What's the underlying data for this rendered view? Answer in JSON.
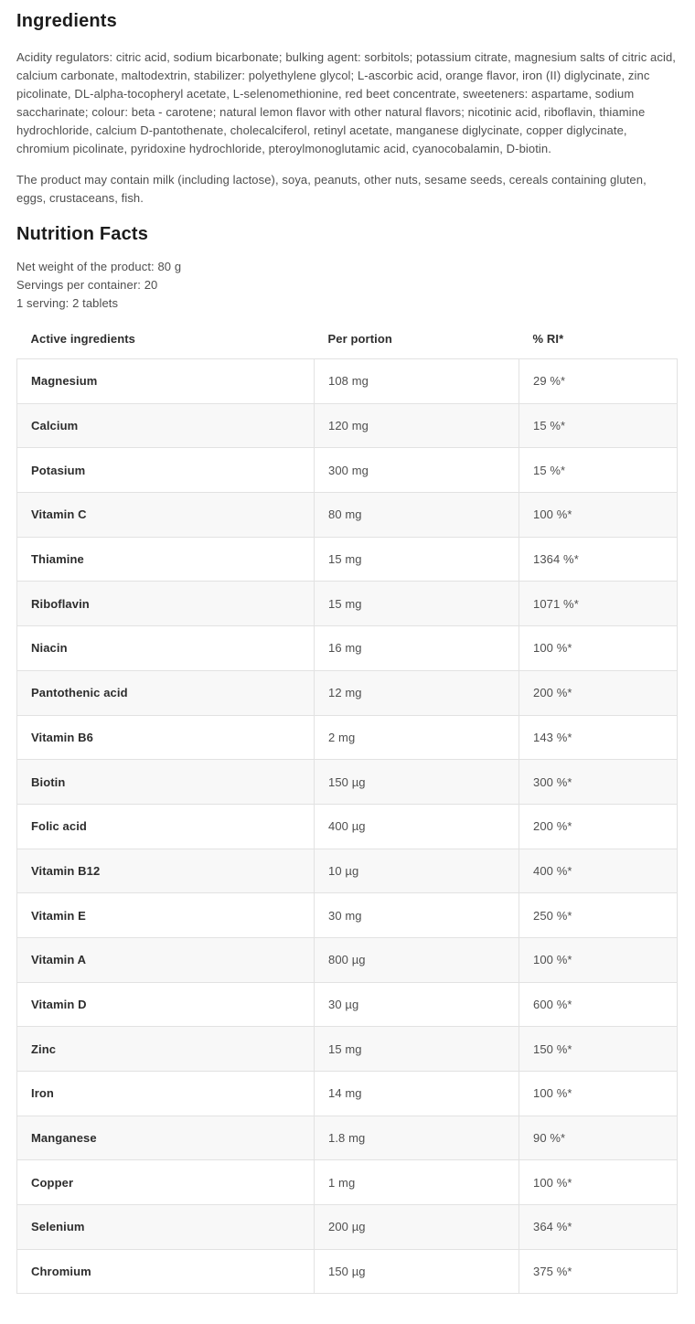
{
  "ingredients": {
    "title": "Ingredients",
    "body": "Acidity regulators: citric acid, sodium bicarbonate; bulking agent: sorbitols; potassium citrate, magnesium salts of citric acid, calcium carbonate, maltodextrin, stabilizer: polyethylene glycol; L-ascorbic acid, orange flavor, iron (II) diglycinate, zinc picolinate, DL-alpha-tocopheryl acetate, L-selenomethionine, red beet concentrate, sweeteners: aspartame, sodium saccharinate; colour: beta - carotene; natural lemon flavor with other natural flavors; nicotinic acid, riboflavin, thiamine hydrochloride, calcium D-pantothenate, cholecalciferol, retinyl acetate, manganese diglycinate, copper diglycinate, chromium picolinate, pyridoxine hydrochloride, pteroylmonoglutamic acid, cyanocobalamin, D-biotin.",
    "allergen_note": "The product may contain milk (including lactose), soya, peanuts, other nuts, sesame seeds, cereals containing gluten, eggs, crustaceans, fish."
  },
  "nutrition": {
    "title": "Nutrition Facts",
    "net_weight": "Net weight of the product: 80 g",
    "servings_per_container": "Servings per container: 20",
    "serving_size": "1 serving: 2 tablets",
    "table": {
      "headers": [
        "Active ingredients",
        "Per portion",
        "% RI*"
      ],
      "rows": [
        {
          "name": "Magnesium",
          "per_portion": "108 mg",
          "ri": "29 %*"
        },
        {
          "name": "Calcium",
          "per_portion": "120 mg",
          "ri": "15 %*"
        },
        {
          "name": "Potasium",
          "per_portion": "300 mg",
          "ri": "15 %*"
        },
        {
          "name": "Vitamin C",
          "per_portion": "80 mg",
          "ri": "100 %*"
        },
        {
          "name": "Thiamine",
          "per_portion": "15 mg",
          "ri": "1364 %*"
        },
        {
          "name": "Riboflavin",
          "per_portion": "15 mg",
          "ri": "1071 %*"
        },
        {
          "name": "Niacin",
          "per_portion": "16 mg",
          "ri": "100 %*"
        },
        {
          "name": "Pantothenic acid",
          "per_portion": "12 mg",
          "ri": "200 %*"
        },
        {
          "name": "Vitamin B6",
          "per_portion": "2 mg",
          "ri": "143 %*"
        },
        {
          "name": "Biotin",
          "per_portion": "150 µg",
          "ri": "300 %*"
        },
        {
          "name": "Folic acid",
          "per_portion": "400 µg",
          "ri": "200 %*"
        },
        {
          "name": "Vitamin B12",
          "per_portion": "10 µg",
          "ri": "400 %*"
        },
        {
          "name": "Vitamin E",
          "per_portion": "30 mg",
          "ri": "250 %*"
        },
        {
          "name": "Vitamin A",
          "per_portion": "800 µg",
          "ri": "100 %*"
        },
        {
          "name": "Vitamin D",
          "per_portion": "30 µg",
          "ri": "600 %*"
        },
        {
          "name": "Zinc",
          "per_portion": "15 mg",
          "ri": "150 %*"
        },
        {
          "name": "Iron",
          "per_portion": "14 mg",
          "ri": "100 %*"
        },
        {
          "name": "Manganese",
          "per_portion": "1.8 mg",
          "ri": "90 %*"
        },
        {
          "name": "Copper",
          "per_portion": "1 mg",
          "ri": "100 %*"
        },
        {
          "name": "Selenium",
          "per_portion": "200 µg",
          "ri": "364 %*"
        },
        {
          "name": "Chromium",
          "per_portion": "150 µg",
          "ri": "375 %*"
        }
      ]
    }
  },
  "colors": {
    "heading_text": "#1c1c1c",
    "body_text": "#4e4e4e",
    "table_strong_text": "#2d2d2d",
    "table_value_text": "#4f4f4f",
    "row_alt_background": "#f8f8f8",
    "table_border": "#e2e2e2",
    "page_background": "#ffffff"
  }
}
